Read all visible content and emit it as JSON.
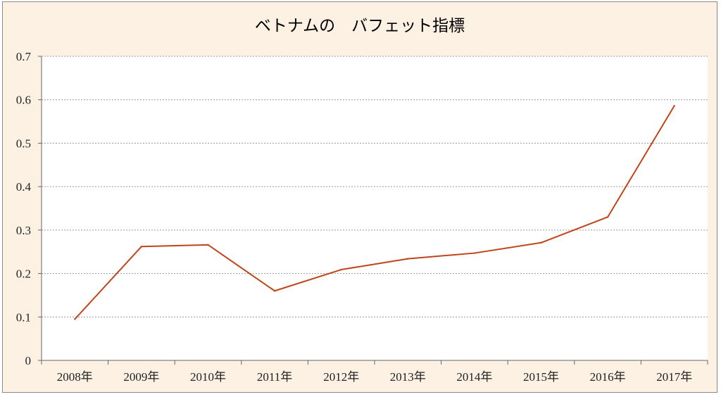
{
  "chart_data": {
    "type": "line",
    "title": "ベトナムの　バフェット指標",
    "categories": [
      "2008年",
      "2009年",
      "2010年",
      "2011年",
      "2012年",
      "2013年",
      "2014年",
      "2015年",
      "2016年",
      "2017年"
    ],
    "values": [
      0.095,
      0.262,
      0.266,
      0.16,
      0.209,
      0.234,
      0.247,
      0.271,
      0.33,
      0.586
    ],
    "ylim": [
      0,
      0.7
    ],
    "yticks": [
      "0",
      "0.1",
      "0.2",
      "0.3",
      "0.4",
      "0.5",
      "0.6",
      "0.7"
    ],
    "grid": true,
    "line_color": "#c0441a",
    "plot_background": "#ffffff",
    "chart_background": "#fdf1e4"
  }
}
